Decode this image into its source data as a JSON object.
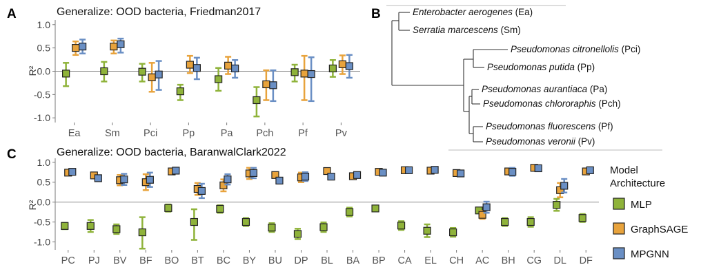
{
  "panels": {
    "a_letter": "A",
    "b_letter": "B",
    "c_letter": "C"
  },
  "colors": {
    "MLP": "#8fb33a",
    "GraphSAGE": "#e8a33c",
    "MPGNN": "#6a8fc4"
  },
  "legend": {
    "title_line1": "Model",
    "title_line2": "Architecture",
    "items": [
      "MLP",
      "GraphSAGE",
      "MPGNN"
    ]
  },
  "tree": {
    "leaves": [
      {
        "name": "Enterobacter aerogenes",
        "abbr": "(Ea)"
      },
      {
        "name": "Serratia marcescens",
        "abbr": "(Sm)"
      },
      {
        "name": "Pseudomonas citronellolis",
        "abbr": "(Pci)"
      },
      {
        "name": "Pseudomonas putida",
        "abbr": "(Pp)"
      },
      {
        "name": "Pseudomonas aurantiaca",
        "abbr": "(Pa)"
      },
      {
        "name": "Pseudomonas chlororaphis",
        "abbr": "(Pch)"
      },
      {
        "name": "Pseudomonas fluorescens",
        "abbr": "(Pf)"
      },
      {
        "name": "Pseudomonas veronii",
        "abbr": "(Pv)"
      }
    ]
  },
  "chart_data": [
    {
      "type": "scatter",
      "title": "Generalize: OOD bacteria, Friedman2017",
      "ylabel": "R²",
      "ylim": [
        -1.1,
        1.1
      ],
      "yticks": [
        "1.0",
        "0.5",
        "0.0",
        "-0.5",
        "-1.0"
      ],
      "categories": [
        "Ea",
        "Sm",
        "Pci",
        "Pp",
        "Pa",
        "Pch",
        "Pf",
        "Pv"
      ],
      "series": [
        {
          "name": "MLP",
          "values": [
            -0.05,
            0.0,
            -0.01,
            -0.43,
            -0.17,
            -0.62,
            -0.02,
            0.06
          ],
          "lower": [
            -0.32,
            -0.22,
            -0.22,
            -0.62,
            -0.42,
            -0.97,
            -0.22,
            -0.12
          ],
          "upper": [
            0.18,
            0.2,
            0.16,
            -0.29,
            0.07,
            -0.34,
            0.14,
            0.24
          ]
        },
        {
          "name": "GraphSAGE",
          "values": [
            0.5,
            0.53,
            -0.13,
            0.14,
            0.12,
            -0.28,
            -0.05,
            0.15
          ],
          "lower": [
            0.35,
            0.38,
            -0.44,
            -0.04,
            -0.06,
            -0.62,
            -0.62,
            -0.06
          ],
          "upper": [
            0.64,
            0.66,
            0.18,
            0.33,
            0.31,
            0.02,
            0.33,
            0.34
          ]
        },
        {
          "name": "MPGNN",
          "values": [
            0.53,
            0.58,
            -0.07,
            0.07,
            0.06,
            -0.3,
            -0.06,
            0.11
          ],
          "lower": [
            0.38,
            0.4,
            -0.4,
            -0.17,
            -0.14,
            -0.64,
            -0.64,
            -0.14
          ],
          "upper": [
            0.68,
            0.7,
            0.22,
            0.29,
            0.24,
            0.02,
            0.3,
            0.35
          ]
        }
      ]
    },
    {
      "type": "scatter",
      "title": "Generalize: OOD bacteria, BaranwalClark2022",
      "ylabel": "R²",
      "ylim": [
        -1.2,
        1.1
      ],
      "yticks": [
        "1.0",
        "0.5",
        "0.0",
        "-0.5",
        "-1.0"
      ],
      "categories": [
        "PC",
        "PJ",
        "BV",
        "BF",
        "BO",
        "BT",
        "BC",
        "BY",
        "BU",
        "DP",
        "BL",
        "BA",
        "BP",
        "CA",
        "EL",
        "CH",
        "AC",
        "BH",
        "CG",
        "DL",
        "DF"
      ],
      "series": [
        {
          "name": "MLP",
          "values": [
            -0.6,
            -0.6,
            -0.68,
            -0.76,
            -0.15,
            -0.5,
            -0.17,
            -0.5,
            -0.64,
            -0.8,
            -0.63,
            -0.25,
            -0.16,
            -0.59,
            -0.72,
            -0.76,
            -0.21,
            -0.5,
            -0.5,
            -0.07,
            -0.4
          ],
          "lower": [
            -0.68,
            -0.75,
            -0.8,
            -1.17,
            -0.24,
            -0.95,
            -0.27,
            -0.6,
            -0.75,
            -0.93,
            -0.75,
            -0.36,
            -0.22,
            -0.7,
            -0.88,
            -0.87,
            -0.28,
            -0.6,
            -0.62,
            -0.22,
            -0.5
          ],
          "upper": [
            -0.52,
            -0.45,
            -0.56,
            -0.38,
            -0.06,
            -0.18,
            -0.08,
            -0.4,
            -0.53,
            -0.67,
            -0.51,
            -0.14,
            -0.1,
            -0.48,
            -0.56,
            -0.65,
            -0.14,
            -0.4,
            -0.38,
            0.08,
            -0.3
          ]
        },
        {
          "name": "GraphSAGE",
          "values": [
            0.74,
            0.67,
            0.55,
            0.5,
            0.77,
            0.33,
            0.42,
            0.72,
            0.68,
            0.62,
            0.78,
            0.65,
            0.76,
            0.8,
            0.79,
            0.73,
            -0.32,
            0.77,
            0.86,
            0.3,
            0.77
          ],
          "lower": [
            0.7,
            0.62,
            0.42,
            0.3,
            0.73,
            0.18,
            0.27,
            0.58,
            0.63,
            0.5,
            0.73,
            0.6,
            0.71,
            0.76,
            0.74,
            0.68,
            -0.42,
            0.72,
            0.82,
            0.12,
            0.72
          ],
          "upper": [
            0.78,
            0.72,
            0.68,
            0.7,
            0.81,
            0.48,
            0.57,
            0.86,
            0.73,
            0.74,
            0.83,
            0.7,
            0.81,
            0.84,
            0.84,
            0.78,
            -0.22,
            0.82,
            0.9,
            0.48,
            0.82
          ]
        },
        {
          "name": "MPGNN",
          "values": [
            0.76,
            0.6,
            0.57,
            0.56,
            0.79,
            0.28,
            0.57,
            0.73,
            0.54,
            0.64,
            0.64,
            0.68,
            0.74,
            0.8,
            0.81,
            0.72,
            -0.13,
            0.76,
            0.85,
            0.41,
            0.8
          ],
          "lower": [
            0.72,
            0.55,
            0.43,
            0.38,
            0.75,
            0.1,
            0.44,
            0.6,
            0.49,
            0.53,
            0.59,
            0.63,
            0.69,
            0.76,
            0.77,
            0.67,
            -0.27,
            0.66,
            0.81,
            0.24,
            0.75
          ],
          "upper": [
            0.8,
            0.65,
            0.71,
            0.74,
            0.83,
            0.46,
            0.7,
            0.86,
            0.59,
            0.75,
            0.69,
            0.73,
            0.79,
            0.84,
            0.85,
            0.77,
            0.01,
            0.86,
            0.89,
            0.58,
            0.85
          ]
        }
      ]
    }
  ]
}
